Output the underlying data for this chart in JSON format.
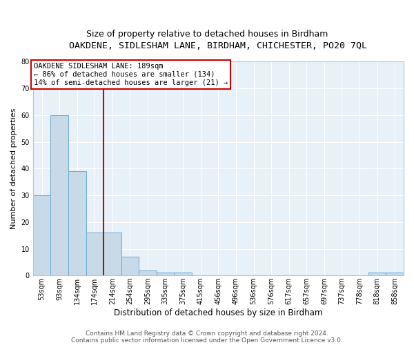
{
  "title1": "OAKDENE, SIDLESHAM LANE, BIRDHAM, CHICHESTER, PO20 7QL",
  "title2": "Size of property relative to detached houses in Birdham",
  "xlabel": "Distribution of detached houses by size in Birdham",
  "ylabel": "Number of detached properties",
  "bin_labels": [
    "53sqm",
    "93sqm",
    "134sqm",
    "174sqm",
    "214sqm",
    "254sqm",
    "295sqm",
    "335sqm",
    "375sqm",
    "415sqm",
    "456sqm",
    "496sqm",
    "536sqm",
    "576sqm",
    "617sqm",
    "657sqm",
    "697sqm",
    "737sqm",
    "778sqm",
    "818sqm",
    "858sqm"
  ],
  "bar_heights": [
    30,
    60,
    39,
    16,
    16,
    7,
    2,
    1,
    1,
    0,
    0,
    0,
    0,
    0,
    0,
    0,
    0,
    0,
    0,
    1,
    1
  ],
  "bar_color": "#C8DAE8",
  "bar_edgecolor": "#6AAAD4",
  "vline_x": 3.5,
  "vline_color": "#CC0000",
  "annotation_line1": "OAKDENE SIDLESHAM LANE: 189sqm",
  "annotation_line2": "← 86% of detached houses are smaller (134)",
  "annotation_line3": "14% of semi-detached houses are larger (21) →",
  "annotation_box_edgecolor": "#CC0000",
  "ylim": [
    0,
    80
  ],
  "yticks": [
    0,
    10,
    20,
    30,
    40,
    50,
    60,
    70,
    80
  ],
  "footer1": "Contains HM Land Registry data © Crown copyright and database right 2024.",
  "footer2": "Contains public sector information licensed under the Open Government Licence v3.0.",
  "plot_bg_color": "#E8F0F8",
  "fig_bg_color": "#FFFFFF",
  "grid_color": "#FFFFFF",
  "title1_fontsize": 9.5,
  "title2_fontsize": 9.0,
  "ylabel_fontsize": 8.0,
  "xlabel_fontsize": 8.5,
  "tick_fontsize": 7.0,
  "footer_fontsize": 6.5
}
